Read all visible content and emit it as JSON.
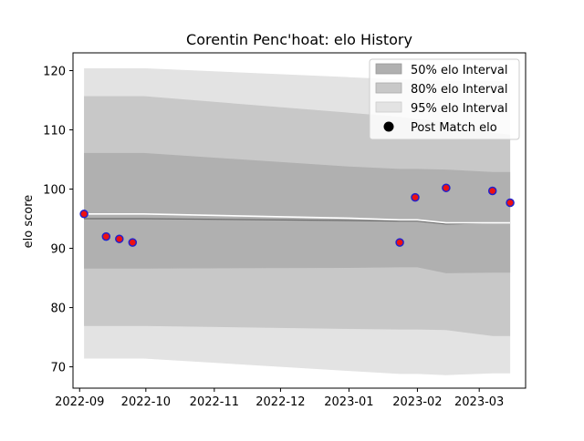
{
  "chart_data": {
    "type": "line",
    "title": "Corentin Penc'hoat: elo History",
    "xlabel": "",
    "ylabel": "elo score",
    "x_ticks": [
      "2022-09",
      "2022-10",
      "2022-11",
      "2022-12",
      "2023-01",
      "2023-02",
      "2023-03"
    ],
    "y_ticks": [
      70,
      80,
      90,
      100,
      110,
      120
    ],
    "xlim": [
      "2022-08-29",
      "2023-03-22"
    ],
    "ylim": [
      66.4,
      123.0
    ],
    "grid": false,
    "legend": {
      "placement": "top-right",
      "entries": [
        {
          "label": "50% elo Interval",
          "color": "#b0b0b0"
        },
        {
          "label": "80% elo Interval",
          "color": "#c8c8c8"
        },
        {
          "label": "95% elo Interval",
          "color": "#e3e3e3"
        },
        {
          "label": "Post Match elo",
          "color": "#000000"
        }
      ]
    },
    "bands": {
      "dates": [
        "2022-09-03",
        "2022-09-30",
        "2023-01-01",
        "2023-01-24",
        "2023-02-01",
        "2023-02-14",
        "2023-03-07",
        "2023-03-15"
      ],
      "p95": {
        "lower": [
          71.4,
          71.4,
          69.3,
          68.8,
          68.8,
          68.6,
          68.9,
          68.9
        ],
        "upper": [
          120.4,
          120.4,
          118.9,
          118.5,
          118.5,
          118.3,
          118.3,
          118.3
        ]
      },
      "p80": {
        "lower": [
          76.9,
          76.9,
          76.4,
          76.3,
          76.3,
          76.2,
          75.2,
          75.2
        ],
        "upper": [
          115.7,
          115.7,
          112.9,
          112.2,
          111.8,
          111.5,
          109.5,
          109.2
        ]
      },
      "p50": {
        "lower": [
          86.6,
          86.6,
          86.7,
          86.8,
          86.8,
          85.8,
          85.9,
          85.9
        ],
        "upper": [
          106.1,
          106.1,
          103.8,
          103.4,
          103.4,
          103.3,
          102.9,
          102.9
        ]
      },
      "mean": [
        95.0,
        95.0,
        94.7,
        94.6,
        94.6,
        94.1,
        94.3,
        94.3
      ],
      "line": [
        95.8,
        95.8,
        95.1,
        94.8,
        94.8,
        94.3,
        94.3,
        94.3
      ]
    },
    "series": [
      {
        "name": "Post Match elo",
        "x": [
          "2022-09-03",
          "2022-09-13",
          "2022-09-19",
          "2022-09-25",
          "2023-01-24",
          "2023-01-31",
          "2023-02-14",
          "2023-03-07",
          "2023-03-15"
        ],
        "y": [
          95.8,
          92.0,
          91.6,
          91.0,
          91.0,
          98.6,
          100.2,
          99.7,
          97.7
        ],
        "marker_fill": "#ee1111",
        "marker_edge": "#2222cc"
      }
    ]
  }
}
